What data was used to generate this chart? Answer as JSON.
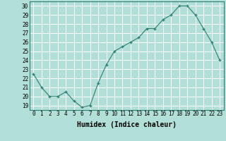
{
  "x": [
    0,
    1,
    2,
    3,
    4,
    5,
    6,
    7,
    8,
    9,
    10,
    11,
    12,
    13,
    14,
    15,
    16,
    17,
    18,
    19,
    20,
    21,
    22,
    23
  ],
  "y": [
    22.5,
    21.0,
    20.0,
    20.0,
    20.5,
    19.5,
    18.8,
    19.0,
    21.5,
    23.5,
    25.0,
    25.5,
    26.0,
    26.5,
    27.5,
    27.5,
    28.5,
    29.0,
    30.0,
    30.0,
    29.0,
    27.5,
    26.0,
    24.0
  ],
  "xlabel": "Humidex (Indice chaleur)",
  "ylabel": "",
  "xlim": [
    -0.5,
    23.5
  ],
  "ylim": [
    18.5,
    30.5
  ],
  "yticks": [
    19,
    20,
    21,
    22,
    23,
    24,
    25,
    26,
    27,
    28,
    29,
    30
  ],
  "xticks": [
    0,
    1,
    2,
    3,
    4,
    5,
    6,
    7,
    8,
    9,
    10,
    11,
    12,
    13,
    14,
    15,
    16,
    17,
    18,
    19,
    20,
    21,
    22,
    23
  ],
  "line_color": "#2e7d6e",
  "marker_color": "#2e7d6e",
  "bg_color": "#b2e0d8",
  "grid_color": "#ffffff",
  "label_fontsize": 7,
  "tick_fontsize": 5.5
}
